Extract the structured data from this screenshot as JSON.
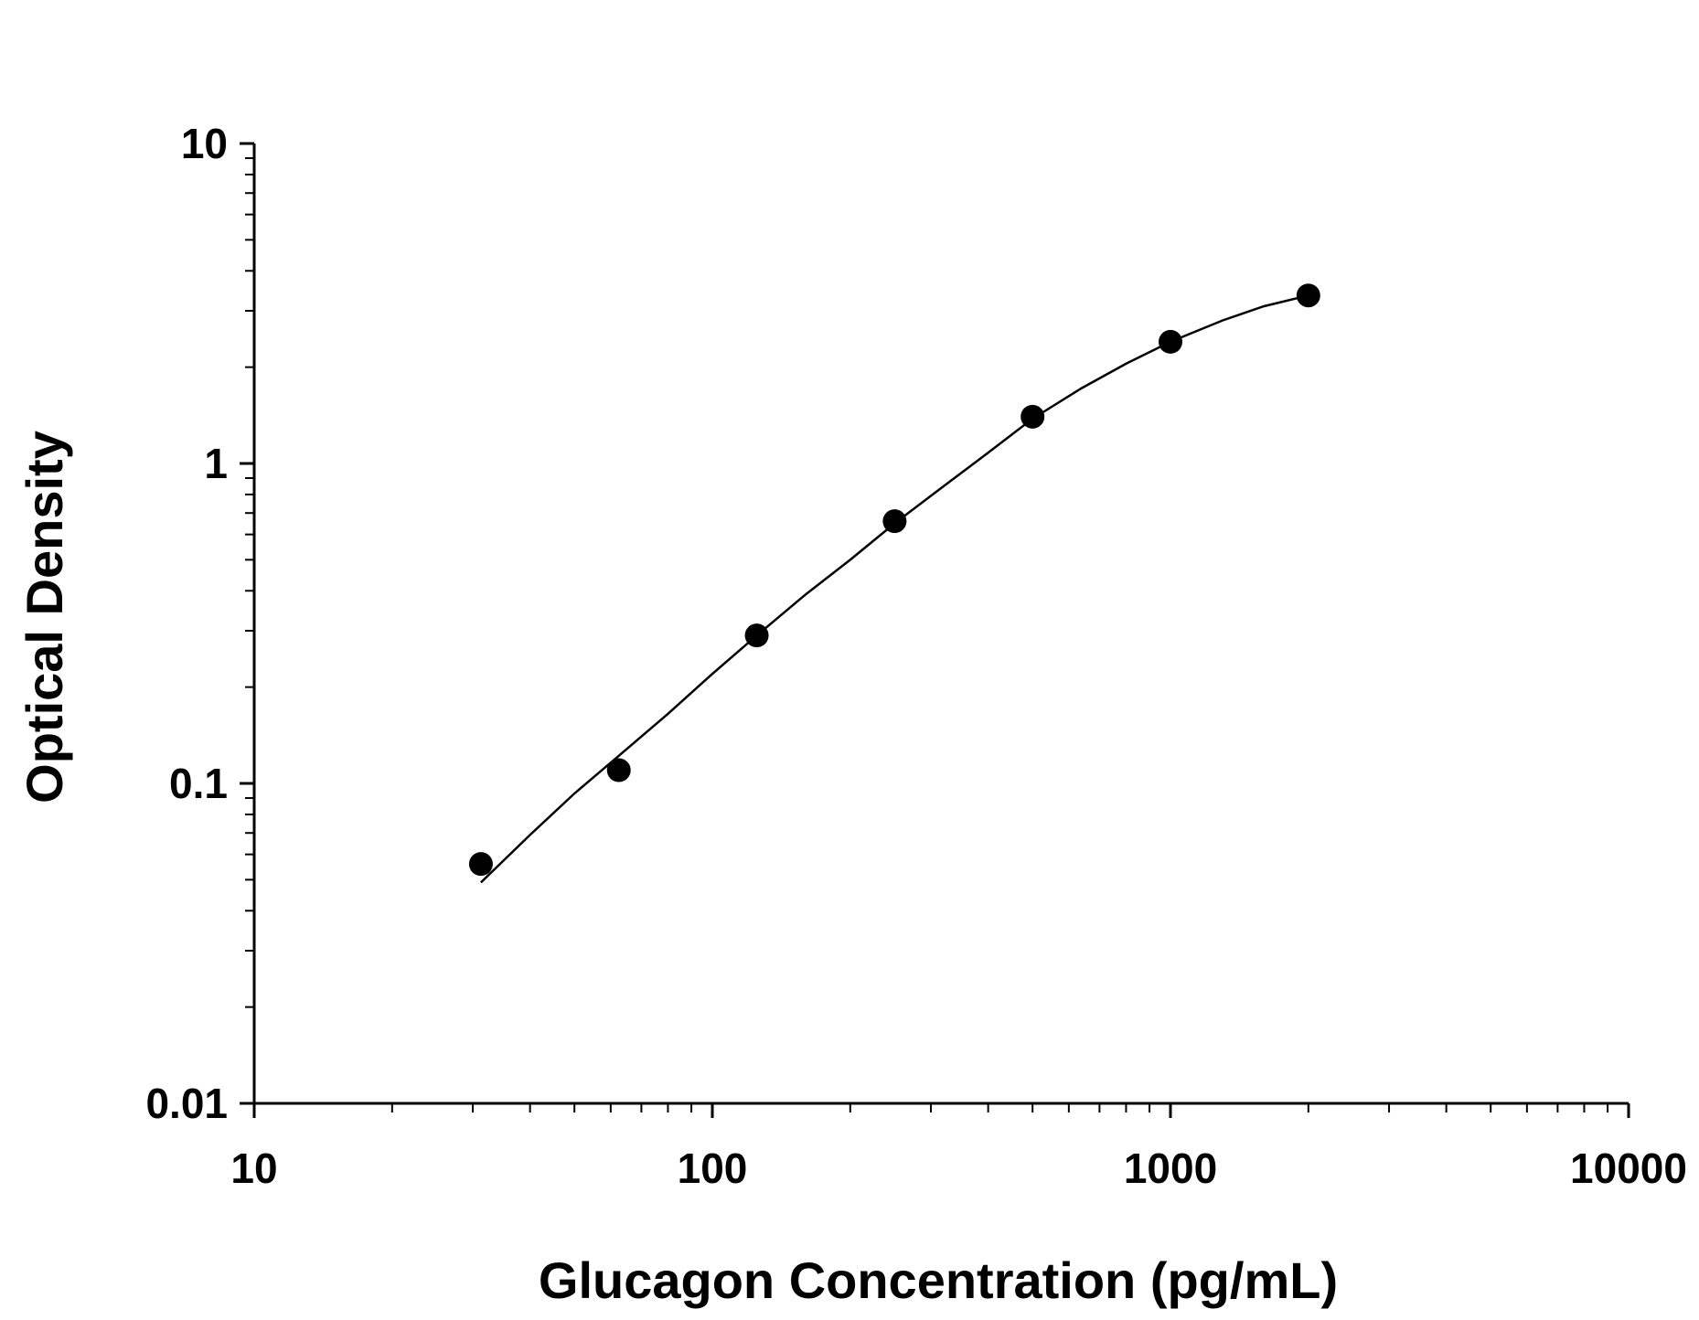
{
  "chart_data": {
    "type": "scatter",
    "title": "",
    "xlabel": "Glucagon Concentration (pg/mL)",
    "ylabel": "Optical Density",
    "xscale": "log",
    "yscale": "log",
    "xlim": [
      10,
      10000
    ],
    "ylim": [
      0.01,
      10
    ],
    "x_ticks": [
      "10",
      "100",
      "1000",
      "10000"
    ],
    "y_ticks": [
      "0.01",
      "0.1",
      "1",
      "10"
    ],
    "grid": false,
    "legend": "none",
    "series": [
      {
        "marker": "circle",
        "color": "#000000",
        "x": [
          31.25,
          62.5,
          125,
          250,
          500,
          1000,
          2000
        ],
        "y": [
          0.056,
          0.11,
          0.29,
          0.66,
          1.4,
          2.4,
          3.35
        ]
      }
    ],
    "fit_curve": {
      "style": "line",
      "color": "#000000",
      "x": [
        31.25,
        40,
        50,
        62.5,
        80,
        100,
        125,
        160,
        200,
        250,
        320,
        400,
        500,
        640,
        800,
        1000,
        1300,
        1600,
        2000
      ],
      "y": [
        0.049,
        0.069,
        0.093,
        0.122,
        0.165,
        0.22,
        0.29,
        0.39,
        0.5,
        0.65,
        0.85,
        1.08,
        1.38,
        1.72,
        2.05,
        2.4,
        2.8,
        3.1,
        3.35
      ]
    }
  }
}
